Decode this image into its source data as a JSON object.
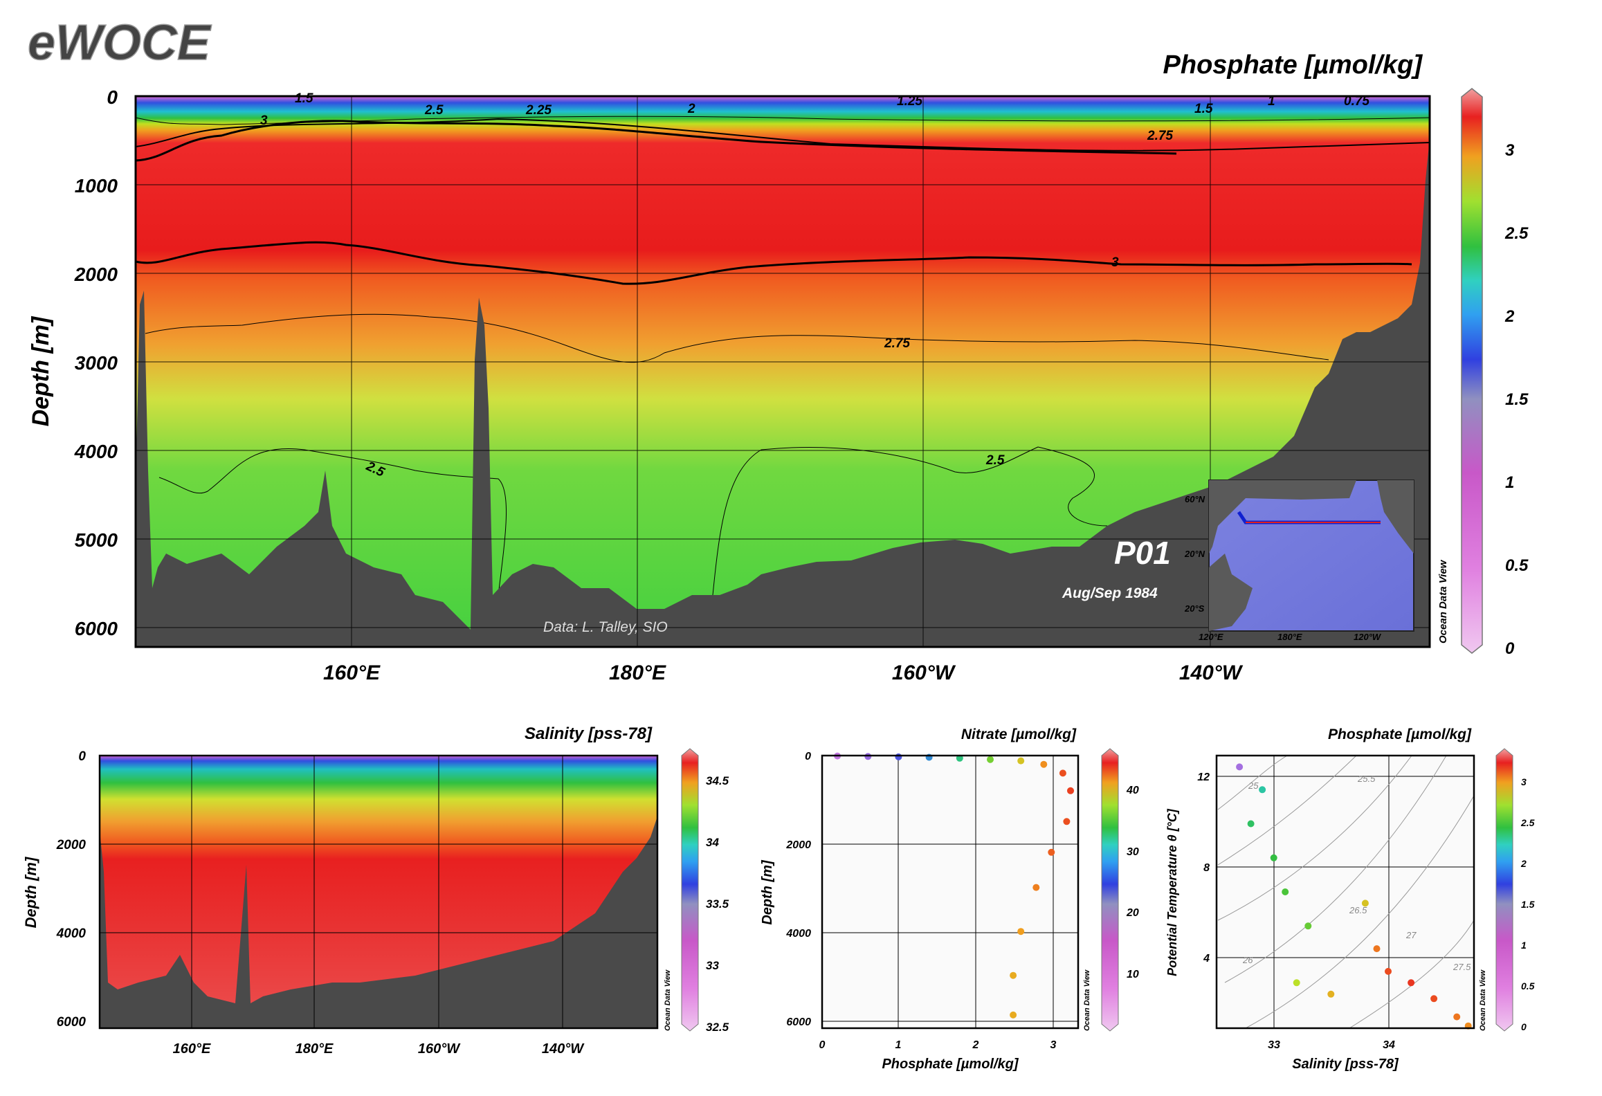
{
  "logo": "eWOCE",
  "main": {
    "title": "Phosphate [µmol/kg]",
    "ylabel": "Depth [m]",
    "depth_ticks": [
      "0",
      "1000",
      "2000",
      "3000",
      "4000",
      "5000",
      "6000"
    ],
    "lon_ticks": [
      "160°E",
      "180°E",
      "160°W",
      "140°W"
    ],
    "section": "P01",
    "date": "Aug/Sep 1984",
    "credit": "Data: L. Talley, SIO",
    "contour_labels": [
      "0.75",
      "1",
      "1.25",
      "1.5",
      "1.5",
      "2",
      "2.25",
      "2.5",
      "2.75",
      "3",
      "3",
      "2.75",
      "2.5",
      "2.5"
    ],
    "colorbar_ticks": [
      "3",
      "2.5",
      "2",
      "1.5",
      "1",
      "0.5",
      "0"
    ],
    "odv": "Ocean Data View",
    "inset": {
      "lat_labels": [
        "60°N",
        "20°N",
        "20°S"
      ],
      "lon_labels": [
        "120°E",
        "180°E",
        "120°W"
      ]
    }
  },
  "salinity_panel": {
    "title": "Salinity [pss-78]",
    "ylabel": "Depth [m]",
    "depth_ticks": [
      "0",
      "2000",
      "4000",
      "6000"
    ],
    "lon_ticks": [
      "160°E",
      "180°E",
      "160°W",
      "140°W"
    ],
    "colorbar_ticks": [
      "34.5",
      "34",
      "33.5",
      "33",
      "32.5"
    ],
    "odv": "Ocean Data View"
  },
  "profile_panel": {
    "title": "Nitrate [µmol/kg]",
    "ylabel": "Depth [m]",
    "xlabel": "Phosphate [µmol/kg]",
    "x_ticks": [
      "0",
      "1",
      "2",
      "3"
    ],
    "depth_ticks": [
      "0",
      "2000",
      "4000",
      "6000"
    ],
    "colorbar_ticks": [
      "40",
      "30",
      "20",
      "10"
    ],
    "odv": "Ocean Data View"
  },
  "ts_panel": {
    "title": "Phosphate [µmol/kg]",
    "ylabel": "Potential Temperature θ [°C]",
    "xlabel": "Salinity [pss-78]",
    "x_ticks": [
      "33",
      "34"
    ],
    "y_ticks": [
      "12",
      "8",
      "4"
    ],
    "isopycnals": [
      "25",
      "25.5",
      "26",
      "26.5",
      "27",
      "27.5"
    ],
    "colorbar_ticks": [
      "3",
      "2.5",
      "2",
      "1.5",
      "1",
      "0.5",
      "0"
    ],
    "odv": "Ocean Data View"
  },
  "chart_data": [
    {
      "type": "heatmap",
      "title": "Phosphate [µmol/kg]",
      "ylabel": "Depth [m]",
      "xlabel": "",
      "x_tick_labels": [
        "160°E",
        "180°E",
        "160°W",
        "140°W"
      ],
      "y_range": [
        0,
        6200
      ],
      "y_reversed": true,
      "colorbar_range": [
        0,
        3.3
      ],
      "depth_profile": [
        {
          "depth": 0,
          "value": 0.9
        },
        {
          "depth": 100,
          "value": 2.0
        },
        {
          "depth": 300,
          "value": 3.0
        },
        {
          "depth": 1000,
          "value": 3.25
        },
        {
          "depth": 2000,
          "value": 2.95
        },
        {
          "depth": 3000,
          "value": 2.7
        },
        {
          "depth": 4000,
          "value": 2.45
        },
        {
          "depth": 5000,
          "value": 2.3
        },
        {
          "depth": 6000,
          "value": 2.3
        }
      ]
    },
    {
      "type": "heatmap",
      "title": "Salinity [pss-78]",
      "ylabel": "Depth [m]",
      "x_tick_labels": [
        "160°E",
        "180°E",
        "160°W",
        "140°W"
      ],
      "y_range": [
        0,
        6200
      ],
      "y_reversed": true,
      "colorbar_range": [
        32.5,
        34.7
      ],
      "depth_profile": [
        {
          "depth": 0,
          "value": 32.8
        },
        {
          "depth": 200,
          "value": 33.6
        },
        {
          "depth": 700,
          "value": 34.2
        },
        {
          "depth": 1500,
          "value": 34.55
        },
        {
          "depth": 3000,
          "value": 34.68
        },
        {
          "depth": 6000,
          "value": 34.69
        }
      ]
    },
    {
      "type": "scatter",
      "title": "Nitrate [µmol/kg]",
      "xlabel": "Phosphate [µmol/kg]",
      "ylabel": "Depth [m]",
      "xlim": [
        0,
        3.35
      ],
      "ylim": [
        6200,
        0
      ],
      "points": [
        {
          "x": 0.2,
          "y": 10,
          "c": 2
        },
        {
          "x": 0.6,
          "y": 20,
          "c": 5
        },
        {
          "x": 1.0,
          "y": 30,
          "c": 10
        },
        {
          "x": 1.4,
          "y": 40,
          "c": 15
        },
        {
          "x": 1.8,
          "y": 60,
          "c": 22
        },
        {
          "x": 2.2,
          "y": 90,
          "c": 28
        },
        {
          "x": 2.6,
          "y": 120,
          "c": 34
        },
        {
          "x": 2.9,
          "y": 200,
          "c": 38
        },
        {
          "x": 3.15,
          "y": 400,
          "c": 42
        },
        {
          "x": 3.25,
          "y": 800,
          "c": 43
        },
        {
          "x": 3.2,
          "y": 1500,
          "c": 42
        },
        {
          "x": 3.0,
          "y": 2200,
          "c": 41
        },
        {
          "x": 2.8,
          "y": 3000,
          "c": 39
        },
        {
          "x": 2.6,
          "y": 4000,
          "c": 37
        },
        {
          "x": 2.5,
          "y": 5000,
          "c": 36
        },
        {
          "x": 2.5,
          "y": 5900,
          "c": 36
        }
      ]
    },
    {
      "type": "scatter",
      "title": "Phosphate [µmol/kg]",
      "xlabel": "Salinity [pss-78]",
      "ylabel": "Potential Temperature θ [°C]",
      "xlim": [
        32.5,
        34.75
      ],
      "ylim": [
        1,
        13
      ],
      "points": [
        {
          "x": 32.7,
          "y": 12.5,
          "c": 0.3
        },
        {
          "x": 32.9,
          "y": 11.5,
          "c": 1.5
        },
        {
          "x": 32.8,
          "y": 10.0,
          "c": 1.7
        },
        {
          "x": 33.0,
          "y": 8.5,
          "c": 1.8
        },
        {
          "x": 33.1,
          "y": 7.0,
          "c": 1.9
        },
        {
          "x": 33.3,
          "y": 5.5,
          "c": 2.0
        },
        {
          "x": 33.2,
          "y": 3.0,
          "c": 2.3
        },
        {
          "x": 33.5,
          "y": 2.5,
          "c": 2.6
        },
        {
          "x": 33.8,
          "y": 6.5,
          "c": 2.5
        },
        {
          "x": 33.9,
          "y": 4.5,
          "c": 2.9
        },
        {
          "x": 34.0,
          "y": 3.5,
          "c": 3.1
        },
        {
          "x": 34.2,
          "y": 3.0,
          "c": 3.2
        },
        {
          "x": 34.4,
          "y": 2.3,
          "c": 3.1
        },
        {
          "x": 34.6,
          "y": 1.5,
          "c": 2.9
        },
        {
          "x": 34.7,
          "y": 1.1,
          "c": 2.8
        }
      ]
    }
  ]
}
